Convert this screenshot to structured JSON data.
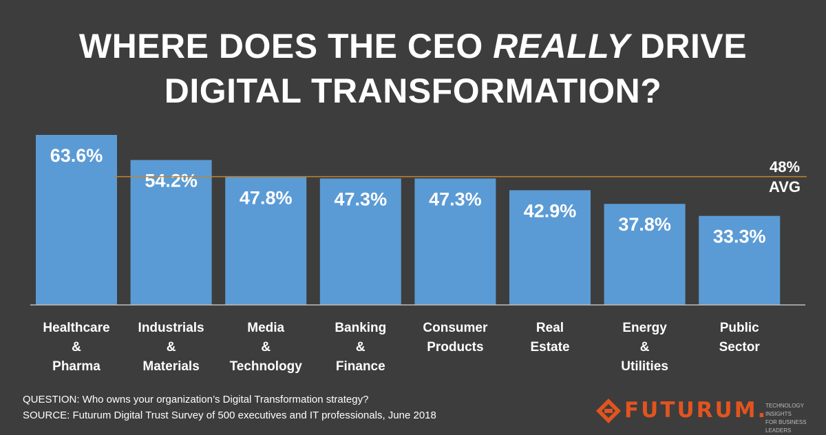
{
  "title": {
    "line1_prefix": "WHERE DOES THE CEO ",
    "line1_emphasis": "REALLY",
    "line1_suffix": " DRIVE",
    "line2": "DIGITAL TRANSFORMATION?"
  },
  "chart_data": {
    "type": "bar",
    "categories": [
      [
        "Healthcare",
        "&",
        "Pharma"
      ],
      [
        "Industrials",
        "&",
        "Materials"
      ],
      [
        "Media",
        "&",
        "Technology"
      ],
      [
        "Banking",
        "&",
        "Finance"
      ],
      [
        "Consumer",
        "Products"
      ],
      [
        "Real",
        "Estate"
      ],
      [
        "Energy",
        "&",
        "Utilities"
      ],
      [
        "Public",
        "Sector"
      ]
    ],
    "values": [
      63.6,
      54.2,
      47.8,
      47.3,
      47.3,
      42.9,
      37.8,
      33.3
    ],
    "value_labels": [
      "63.6%",
      "54.2%",
      "47.8%",
      "47.3%",
      "47.3%",
      "42.9%",
      "37.8%",
      "33.3%"
    ],
    "reference_line": {
      "value": 48,
      "label_line1": "48%",
      "label_line2": "AVG"
    },
    "bar_color": "#5b9bd5",
    "reference_color": "#c0852e",
    "ylim": [
      0,
      63.6
    ]
  },
  "footer": {
    "question": "QUESTION: Who owns your organization’s Digital Transformation strategy?",
    "source": "SOURCE: Futurum Digital Trust Survey of 500 executives and IT professionals, June 2018"
  },
  "logo": {
    "word": "FUTURUM.",
    "tagline_line1": "TECHNOLOGY INSIGHTS",
    "tagline_line2": "FOR BUSINESS LEADERS",
    "icon": "futurum-logo-icon",
    "color": "#e2541f"
  }
}
